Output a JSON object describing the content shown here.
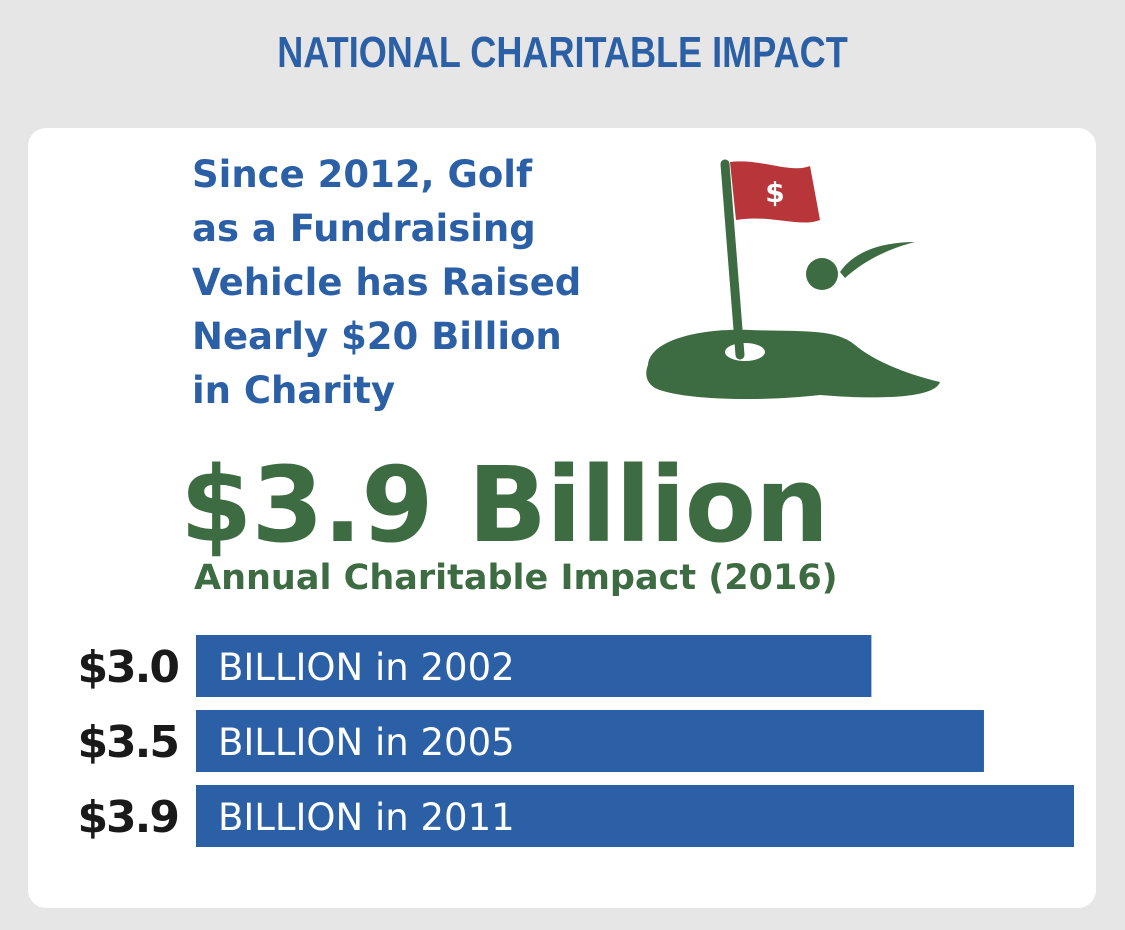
{
  "header": {
    "title": "NATIONAL CHARITABLE IMPACT"
  },
  "intro": {
    "lines": [
      "Since 2012, Golf",
      "as a Fundraising",
      "Vehicle has Raised",
      "Nearly $20 Billion",
      "in Charity"
    ]
  },
  "icon": {
    "name": "golf-flag-icon",
    "flag_symbol": "$"
  },
  "headline": {
    "value": "$3.9 Billion",
    "caption": "Annual Charitable Impact (2016)"
  },
  "colors": {
    "blue": "#2b5fa6",
    "green": "#3d6b42",
    "flag_red": "#b8353a",
    "background": "#e6e6e6"
  },
  "chart_data": {
    "type": "bar",
    "orientation": "horizontal",
    "categories": [
      "2002",
      "2005",
      "2011"
    ],
    "values": [
      3.0,
      3.5,
      3.9
    ],
    "value_labels": [
      "$3.0",
      "$3.5",
      "$3.9"
    ],
    "bar_labels": [
      "BILLION in 2002",
      "BILLION in 2005",
      "BILLION in 2011"
    ],
    "unit": "billion USD",
    "grid": false,
    "legend": "none"
  }
}
